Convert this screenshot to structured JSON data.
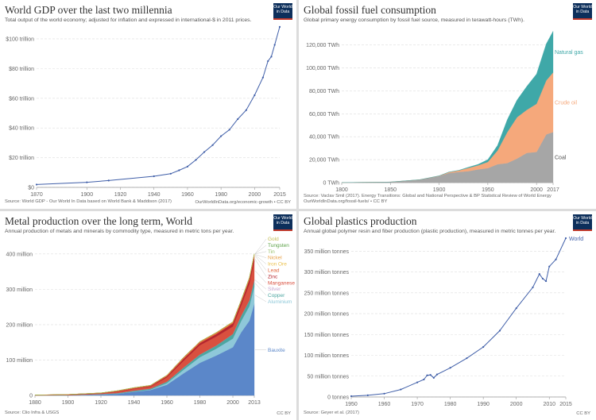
{
  "panels": [
    {
      "title": "World GDP over the last two millennia",
      "subtitle": "Total output of the world economy; adjusted for inflation and expressed in international-$ in 2011 prices.",
      "logo": [
        "Our World",
        "in Data"
      ],
      "source": "Source: World GDP - Our World In Data based on World Bank & Maddison (2017)",
      "license": "OurWorldInData.org/economic-growth • CC BY"
    },
    {
      "title": "Global fossil fuel consumption",
      "subtitle": "Global primary energy consumption by fossil fuel source, measured in terawatt-hours (TWh).",
      "logo": [
        "Our World",
        "in Data"
      ],
      "source": "Source: Vaclav Smil (2017). Energy Transitions: Global and National Perspective & BP Statistical Review of World Energy",
      "source2": "OurWorldInData.org/fossil-fuels/ • CC BY",
      "license": ""
    },
    {
      "title": "Metal production over the long term, World",
      "subtitle": "Annual production of metals and minerals by commodity type, measured in metric tons per year.",
      "logo": [
        "Our World",
        "in Data"
      ],
      "source": "Source: Clio Infra & USGS",
      "license": "CC BY"
    },
    {
      "title": "Global plastics production",
      "subtitle": "Annual global polymer resin and fiber production (plastic production), measured in metric tonnes per year.",
      "logo": [
        "Our World",
        "in Data"
      ],
      "source": "Source: Geyer et al. (2017)",
      "license": "CC BY"
    }
  ],
  "chart_data": [
    {
      "type": "line",
      "title": "World GDP over the last two millennia",
      "xlabel": "",
      "ylabel": "",
      "xlim": [
        1870,
        2015
      ],
      "ylim": [
        0,
        108
      ],
      "x_ticks": [
        "1870",
        "1900",
        "1920",
        "1940",
        "1960",
        "1980",
        "2000",
        "2015"
      ],
      "x_tick_values": [
        1870,
        1900,
        1920,
        1940,
        1960,
        1980,
        2000,
        2015
      ],
      "y_ticks": [
        "$0",
        "$20 trillion",
        "$40 trillion",
        "$60 trillion",
        "$80 trillion",
        "$100 trillion"
      ],
      "y_tick_values": [
        0,
        20,
        40,
        60,
        80,
        100
      ],
      "color": "#3f5ea8",
      "x": [
        1870,
        1900,
        1913,
        1940,
        1950,
        1955,
        1960,
        1965,
        1970,
        1975,
        1980,
        1985,
        1990,
        1995,
        2000,
        2005,
        2008,
        2010,
        2012,
        2015
      ],
      "y": [
        1.9,
        3.4,
        4.6,
        7.5,
        9.2,
        11.5,
        14.0,
        18.5,
        23.8,
        28.5,
        34.5,
        38.8,
        46.0,
        52.0,
        62.0,
        74.0,
        85.0,
        88.0,
        96.0,
        108.1
      ]
    },
    {
      "type": "area",
      "title": "Global fossil fuel consumption",
      "xlabel": "",
      "ylabel": "",
      "xlim": [
        1800,
        2017
      ],
      "ylim": [
        0,
        135000
      ],
      "x_ticks": [
        "1800",
        "1850",
        "1900",
        "1950",
        "2000",
        "2017"
      ],
      "x_tick_values": [
        1800,
        1850,
        1900,
        1950,
        2000,
        2017
      ],
      "y_ticks": [
        "0 TWh",
        "20,000 TWh",
        "40,000 TWh",
        "60,000 TWh",
        "80,000 TWh",
        "100,000 TWh",
        "120,000 TWh"
      ],
      "y_tick_values": [
        0,
        20000,
        40000,
        60000,
        80000,
        100000,
        120000
      ],
      "x": [
        1800,
        1850,
        1880,
        1900,
        1910,
        1920,
        1930,
        1940,
        1950,
        1960,
        1970,
        1980,
        1990,
        2000,
        2010,
        2017
      ],
      "series": [
        {
          "name": "Coal",
          "color": "#a6a6a6",
          "values": [
            97,
            550,
            2500,
            5700,
            8300,
            9300,
            10000,
            11500,
            12600,
            16000,
            17000,
            21000,
            25900,
            26700,
            42000,
            44000
          ]
        },
        {
          "name": "Crude oil",
          "color": "#f5a87b",
          "values": [
            0,
            0,
            50,
            200,
            800,
            1200,
            2800,
            3500,
            5400,
            12000,
            27000,
            36000,
            37500,
            42000,
            47000,
            52000
          ]
        },
        {
          "name": "Natural gas",
          "color": "#3fa8a8",
          "values": [
            0,
            0,
            0,
            60,
            150,
            250,
            600,
            900,
            2100,
            4500,
            11000,
            15000,
            20500,
            26000,
            32000,
            36000
          ]
        }
      ]
    },
    {
      "type": "area",
      "title": "Metal production over the long term, World",
      "xlabel": "",
      "ylabel": "",
      "xlim": [
        1880,
        2013
      ],
      "ylim": [
        0,
        440
      ],
      "x_ticks": [
        "1880",
        "1900",
        "1920",
        "1940",
        "1960",
        "1980",
        "2000",
        "2013"
      ],
      "x_tick_values": [
        1880,
        1900,
        1920,
        1940,
        1960,
        1980,
        2000,
        2013
      ],
      "y_ticks": [
        "0",
        "100 million",
        "200 million",
        "300 million",
        "400 million"
      ],
      "y_tick_values": [
        0,
        100,
        200,
        300,
        400
      ],
      "x": [
        1880,
        1900,
        1920,
        1930,
        1940,
        1950,
        1960,
        1970,
        1980,
        1990,
        2000,
        2005,
        2010,
        2013
      ],
      "series": [
        {
          "name": "Bauxite",
          "color": "#5b87c9",
          "values": [
            0,
            0.1,
            2.5,
            4.5,
            10,
            15,
            30,
            62,
            92,
            113,
            136,
            178,
            211,
            259
          ]
        },
        {
          "name": "Aluminium",
          "color": "#8ec8d9",
          "values": [
            0,
            0.01,
            0.2,
            0.3,
            0.8,
            1.5,
            4.5,
            10,
            16,
            19.3,
            24.4,
            31.9,
            41.4,
            49
          ]
        },
        {
          "name": "Copper",
          "color": "#4da6a1",
          "values": [
            0.1,
            0.5,
            1,
            1.6,
            2.4,
            2.5,
            4.2,
            6.3,
            7.7,
            9,
            13.2,
            14.9,
            16.1,
            18.3
          ]
        },
        {
          "name": "Silver",
          "color": "#c7a6d1",
          "values": [
            0.002,
            0.005,
            0.005,
            0.005,
            0.008,
            0.006,
            0.007,
            0.009,
            0.011,
            0.016,
            0.018,
            0.02,
            0.023,
            0.026
          ]
        },
        {
          "name": "Manganese",
          "color": "#d9503f",
          "values": [
            0.2,
            0.6,
            1.5,
            3.5,
            4.9,
            5.4,
            12,
            19,
            26,
            25,
            21,
            28.5,
            46.3,
            52
          ]
        },
        {
          "name": "Zinc",
          "color": "#b5262e",
          "values": [
            0.3,
            0.5,
            0.7,
            1.4,
            1.7,
            2,
            3.3,
            5.4,
            6,
            7.2,
            8.8,
            10.1,
            12,
            13.5
          ]
        },
        {
          "name": "Lead",
          "color": "#e0653d",
          "values": [
            0.4,
            0.9,
            1,
            1.7,
            1.7,
            1.7,
            2.4,
            3.4,
            3.5,
            3.2,
            3.1,
            3.5,
            4.2,
            5.4
          ]
        },
        {
          "name": "Iron Ore",
          "color": "#ebc14d",
          "values": [
            0,
            0,
            0,
            0,
            0,
            0,
            0,
            0,
            0,
            0,
            0,
            0,
            0,
            0
          ]
        },
        {
          "name": "Nickel",
          "color": "#e8a34a",
          "values": [
            0.001,
            0.008,
            0.04,
            0.06,
            0.14,
            0.15,
            0.33,
            0.67,
            0.74,
            0.97,
            1.25,
            1.5,
            1.59,
            2.5
          ]
        },
        {
          "name": "Tin",
          "color": "#9ac16b",
          "values": [
            0.05,
            0.08,
            0.12,
            0.18,
            0.23,
            0.17,
            0.18,
            0.22,
            0.25,
            0.22,
            0.27,
            0.3,
            0.27,
            0.29
          ]
        },
        {
          "name": "Tungsten",
          "color": "#5aa146",
          "values": [
            0,
            0.005,
            0.01,
            0.02,
            0.04,
            0.03,
            0.03,
            0.04,
            0.05,
            0.05,
            0.04,
            0.06,
            0.07,
            0.08
          ]
        },
        {
          "name": "Gold",
          "color": "#c2bb50",
          "values": [
            0.0002,
            0.0004,
            0.0005,
            0.0006,
            0.0011,
            0.0009,
            0.0012,
            0.0015,
            0.0012,
            0.0022,
            0.0026,
            0.0025,
            0.0026,
            0.0028
          ]
        }
      ]
    },
    {
      "type": "line",
      "title": "Global plastics production",
      "xlabel": "",
      "ylabel": "",
      "xlim": [
        1950,
        2015
      ],
      "ylim": [
        0,
        381
      ],
      "x_ticks": [
        "1950",
        "1960",
        "1970",
        "1980",
        "1990",
        "2000",
        "2010",
        "2015"
      ],
      "x_tick_values": [
        1950,
        1960,
        1970,
        1980,
        1990,
        2000,
        2010,
        2015
      ],
      "y_ticks": [
        "0 tonnes",
        "50 million tonnes",
        "100 million tonnes",
        "150 million tonnes",
        "200 million tonnes",
        "250 million tonnes",
        "300 million tonnes",
        "350 million tonnes"
      ],
      "y_tick_values": [
        0,
        50,
        100,
        150,
        200,
        250,
        300,
        350
      ],
      "series_name": "World",
      "color": "#3f5ea8",
      "x": [
        1950,
        1955,
        1960,
        1965,
        1970,
        1972,
        1973,
        1974,
        1975,
        1976,
        1980,
        1985,
        1990,
        1995,
        2000,
        2005,
        2007,
        2008,
        2009,
        2010,
        2012,
        2015
      ],
      "y": [
        2,
        4,
        8,
        18,
        35,
        42,
        52,
        53,
        46,
        54,
        70,
        93,
        120,
        159,
        213,
        263,
        295,
        284,
        278,
        313,
        330,
        381
      ]
    }
  ]
}
